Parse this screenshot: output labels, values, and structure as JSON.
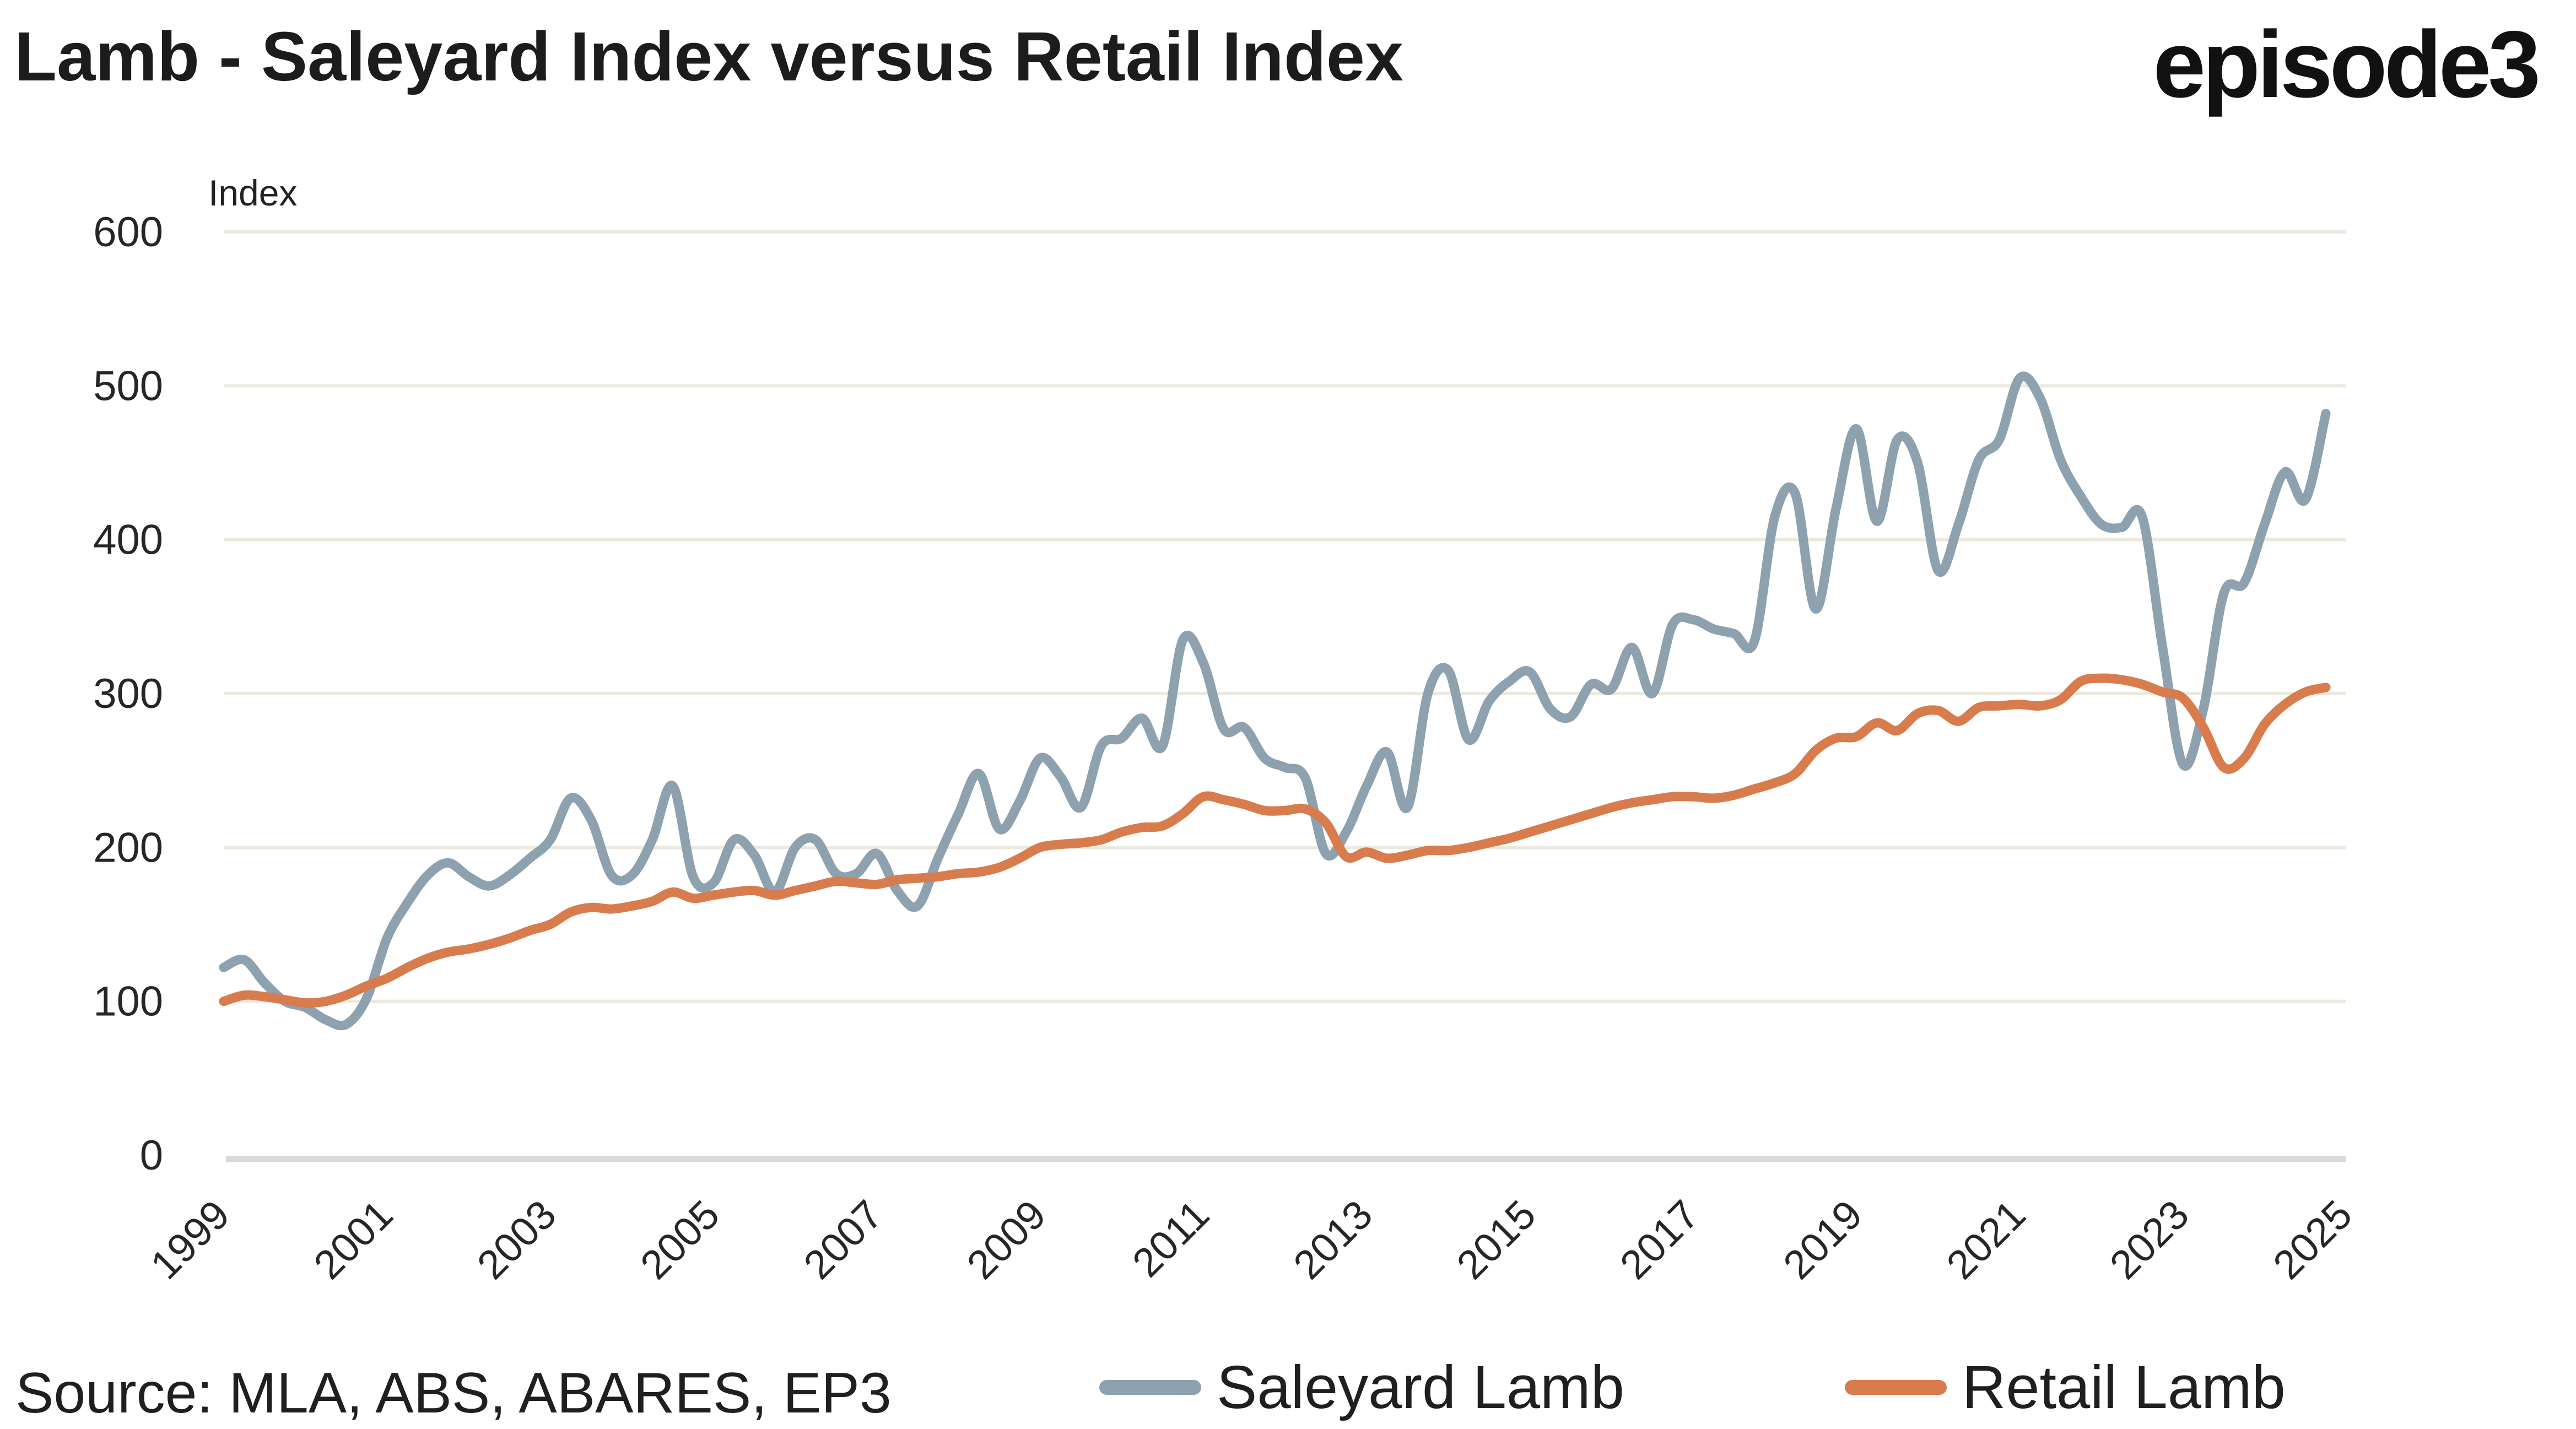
{
  "header": {
    "title": "Lamb - Saleyard Index versus Retail Index",
    "logo": "episode3"
  },
  "footer": {
    "source": "Source: MLA, ABS, ABARES, EP3"
  },
  "chart_data": {
    "type": "line",
    "title": "Lamb - Saleyard Index versus Retail Index",
    "xlabel": "",
    "ylabel": "Index",
    "ylim": [
      0,
      600
    ],
    "yticks": [
      0,
      100,
      200,
      300,
      400,
      500,
      600
    ],
    "x_range": [
      1999,
      2025
    ],
    "x_tick_labels": [
      "1999",
      "2001",
      "2003",
      "2005",
      "2007",
      "2009",
      "2011",
      "2013",
      "2015",
      "2017",
      "2019",
      "2021",
      "2023",
      "2025"
    ],
    "x_start": 1999.0,
    "x_step": 0.25,
    "points_per_series": 104,
    "grid": "horizontal",
    "legend_position": "bottom",
    "colors": {
      "gridline": "#ECEADF",
      "axis_line": "#D9D9D9",
      "text": "#2A2A2A"
    },
    "series": [
      {
        "name": "Saleyard Lamb",
        "color": "#8DA1AF",
        "values": [
          122,
          127,
          112,
          100,
          96,
          88,
          85,
          102,
          141,
          164,
          182,
          190,
          181,
          175,
          182,
          193,
          205,
          232,
          218,
          182,
          182,
          205,
          240,
          181,
          177,
          205,
          195,
          171,
          200,
          205,
          183,
          183,
          196,
          172,
          162,
          193,
          222,
          248,
          212,
          230,
          258,
          246,
          226,
          266,
          271,
          284,
          266,
          335,
          320,
          277,
          278,
          258,
          252,
          245,
          196,
          210,
          240,
          262,
          226,
          300,
          315,
          270,
          295,
          308,
          314,
          290,
          285,
          306,
          303,
          330,
          300,
          345,
          348,
          342,
          339,
          334,
          415,
          430,
          355,
          420,
          472,
          412,
          465,
          450,
          380,
          410,
          452,
          465,
          505,
          492,
          452,
          428,
          410,
          408,
          415,
          330,
          254,
          290,
          365,
          372,
          410,
          444,
          426,
          482
        ]
      },
      {
        "name": "Retail Lamb",
        "color": "#D87C4E",
        "values": [
          100,
          104,
          103,
          101,
          99,
          100,
          104,
          110,
          115,
          122,
          128,
          132,
          134,
          137,
          141,
          146,
          150,
          158,
          161,
          160,
          162,
          165,
          171,
          167,
          169,
          171,
          172,
          169,
          172,
          175,
          178,
          177,
          176,
          179,
          180,
          181,
          183,
          184,
          187,
          193,
          200,
          202,
          203,
          205,
          210,
          213,
          214,
          222,
          233,
          231,
          228,
          224,
          224,
          225,
          216,
          194,
          197,
          193,
          195,
          198,
          198,
          200,
          203,
          206,
          210,
          214,
          218,
          222,
          226,
          229,
          231,
          233,
          233,
          232,
          234,
          238,
          242,
          248,
          263,
          271,
          272,
          281,
          276,
          287,
          289,
          282,
          291,
          292,
          293,
          292,
          296,
          308,
          310,
          309,
          306,
          301,
          297,
          278,
          252,
          258,
          280,
          293,
          301,
          304
        ]
      }
    ]
  }
}
